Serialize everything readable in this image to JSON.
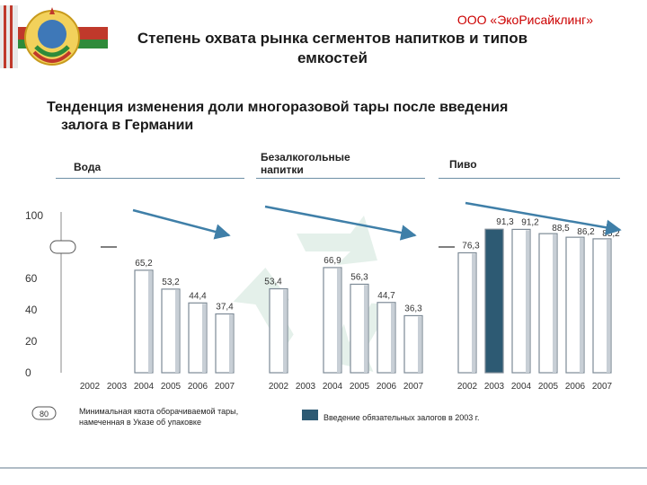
{
  "header": {
    "company": "ООО «ЭкоРисайклинг»",
    "title_line1": "Степень охвата рынка сегментов напитков и типов",
    "title_line2": "емкостей"
  },
  "subtitle_line1": "Тенденция изменения доли многоразовой тары после введения",
  "subtitle_line2": "залога в Германии",
  "colors": {
    "bar_fill": "#ffffff",
    "bar_border": "#7d8a96",
    "bar_shade": "#c8cfd6",
    "highlight_fill": "#2d5a73",
    "arrow": "#3f7fa8",
    "axis_text": "#333333"
  },
  "chart_data": {
    "type": "bar",
    "ylim": [
      0,
      100
    ],
    "yticks": [
      0,
      20,
      40,
      60,
      100
    ],
    "segments": [
      {
        "name": "Вода",
        "categories": [
          "2002",
          "2003",
          "2004",
          "2005",
          "2006",
          "2007"
        ],
        "values": [
          null,
          null,
          65.2,
          53.2,
          44.4,
          37.4
        ],
        "labels": [
          "",
          "",
          "65,2",
          "53,2",
          "44,4",
          "37,4"
        ]
      },
      {
        "name": "Безалкогольные напитки",
        "categories": [
          "2002",
          "2003",
          "2004",
          "2005",
          "2006",
          "2007"
        ],
        "values": [
          53.4,
          null,
          66.9,
          56.3,
          44.7,
          36.3
        ],
        "labels": [
          "53,4",
          "",
          "66,9",
          "56,3",
          "44,7",
          "36,3"
        ]
      },
      {
        "name": "Пиво",
        "categories": [
          "2002",
          "2003",
          "2004",
          "2005",
          "2006",
          "2007"
        ],
        "values": [
          76.3,
          91.3,
          91.2,
          88.5,
          86.2,
          85.2
        ],
        "labels": [
          "76,3",
          "91,3",
          "91,2",
          "88,5",
          "86,2",
          "85,2"
        ]
      }
    ],
    "highlight_year": "2003",
    "quota_value": "80",
    "legend": [
      {
        "marker": "80",
        "text_line1": "Минимальная квота оборачиваемой тары,",
        "text_line2": "намеченная в Указе об упаковке"
      },
      {
        "text": "Введение обязательных залогов в 2003 г."
      }
    ]
  }
}
